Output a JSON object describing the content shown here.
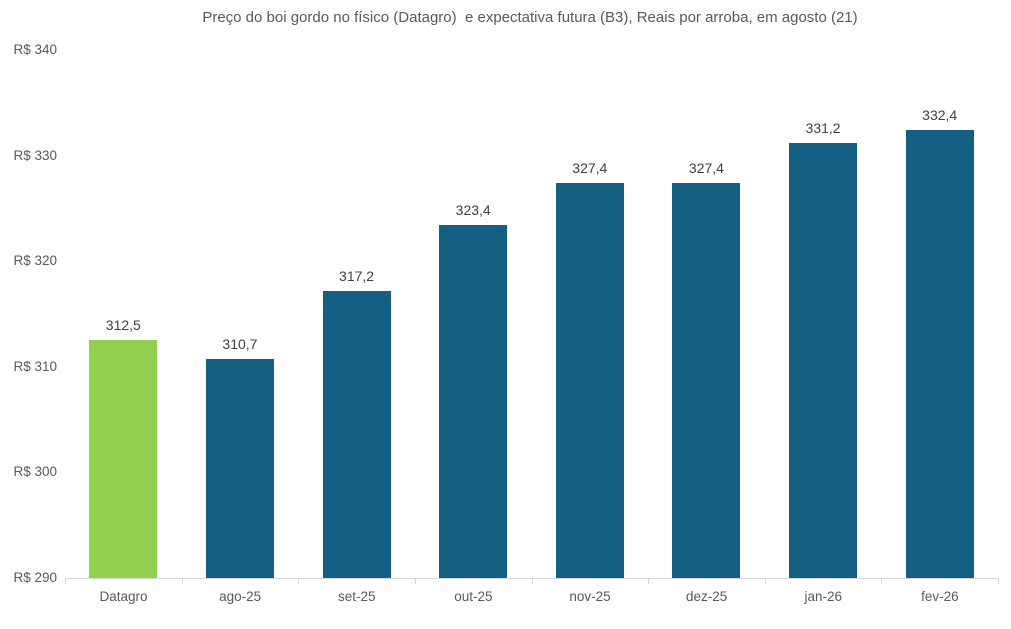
{
  "chart_data": {
    "type": "bar",
    "title": "Preço do boi gordo no físico (Datagro)  e expectativa futura (B3), Reais por arroba, em agosto (21)",
    "categories": [
      "Datagro",
      "ago-25",
      "set-25",
      "out-25",
      "nov-25",
      "dez-25",
      "jan-26",
      "fev-26"
    ],
    "values": [
      312.5,
      310.7,
      317.2,
      323.4,
      327.4,
      327.4,
      331.2,
      332.4
    ],
    "value_labels": [
      "312,5",
      "310,7",
      "317,2",
      "323,4",
      "327,4",
      "327,4",
      "331,2",
      "332,4"
    ],
    "xlabel": "",
    "ylabel": "",
    "ylim": [
      290,
      340
    ],
    "ytick_step": 10,
    "ytick_labels": [
      "R$ 290",
      "R$ 300",
      "R$ 310",
      "R$ 320",
      "R$ 330",
      "R$ 340"
    ],
    "grid": false,
    "legend": false,
    "bar_colors": [
      "#92D050",
      "#156082",
      "#156082",
      "#156082",
      "#156082",
      "#156082",
      "#156082",
      "#156082"
    ],
    "colors": {
      "highlight_bar": "#92D050",
      "default_bar": "#156082",
      "axis_line": "#d9d9d9",
      "title_text": "#595959",
      "axis_text": "#595959",
      "data_label_text": "#404040",
      "background": "#ffffff"
    }
  }
}
